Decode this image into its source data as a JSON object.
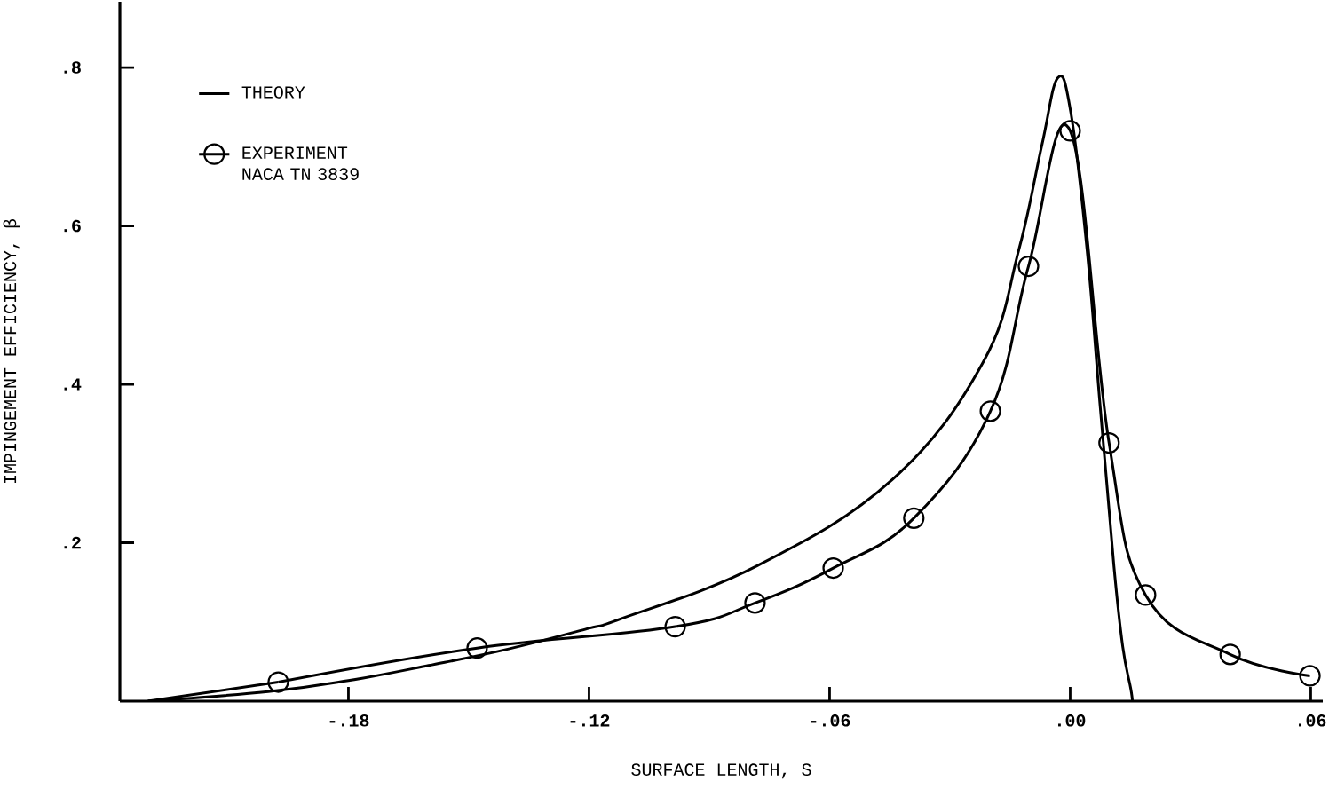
{
  "chart_data": {
    "type": "line",
    "xlabel": "SURFACE LENGTH, S",
    "ylabel": "IMPINGEMENT EFFICIENCY, β",
    "xlim": [
      -0.237,
      0.063
    ],
    "ylim": [
      0,
      0.883
    ],
    "xticks": [
      {
        "value": -0.18,
        "label": "-.18"
      },
      {
        "value": -0.12,
        "label": "-.12"
      },
      {
        "value": -0.06,
        "label": "-.06"
      },
      {
        "value": 0,
        "label": ".00"
      },
      {
        "value": 0.06,
        "label": ".06"
      }
    ],
    "yticks": [
      {
        "value": 0.2,
        "label": ".2"
      },
      {
        "value": 0.4,
        "label": ".4"
      },
      {
        "value": 0.6,
        "label": ".6"
      },
      {
        "value": 0.8,
        "label": ".8"
      }
    ],
    "grid": false,
    "legend": "top left",
    "series": [
      {
        "name": "THEORY",
        "color": "#000000",
        "marker": "none",
        "x": [
          -0.23,
          -0.2,
          -0.18,
          -0.16,
          -0.14,
          -0.12,
          -0.112,
          -0.078,
          -0.0443,
          -0.0217,
          -0.0128,
          -0.0071,
          -0.0031,
          0.0002,
          0.0042,
          0.0075,
          0.0109,
          0.0131,
          0.0151,
          0.0155
        ],
        "values": [
          0,
          0.012,
          0.026,
          0.045,
          0.066,
          0.092,
          0.104,
          0.171,
          0.28,
          0.428,
          0.57,
          0.701,
          0.787,
          0.742,
          0.57,
          0.371,
          0.171,
          0.069,
          0.016,
          0
        ]
      },
      {
        "name": "EXPERIMENT NACA TN 3839",
        "color": "#000000",
        "marker": "circle",
        "x": [
          -0.1975,
          -0.1479,
          -0.0985,
          -0.0786,
          -0.0591,
          -0.039,
          -0.0199,
          -0.0104,
          0,
          0.0097,
          0.0188,
          0.0399,
          0.0598
        ],
        "values": [
          0.024,
          0.067,
          0.094,
          0.124,
          0.168,
          0.231,
          0.366,
          0.549,
          0.72,
          0.326,
          0.134,
          0.059,
          0.032
        ]
      },
      {
        "color": "#000000",
        "marker": "none",
        "x": [
          -0.23,
          -0.1975
        ],
        "values": [
          0,
          0.024
        ]
      }
    ]
  }
}
